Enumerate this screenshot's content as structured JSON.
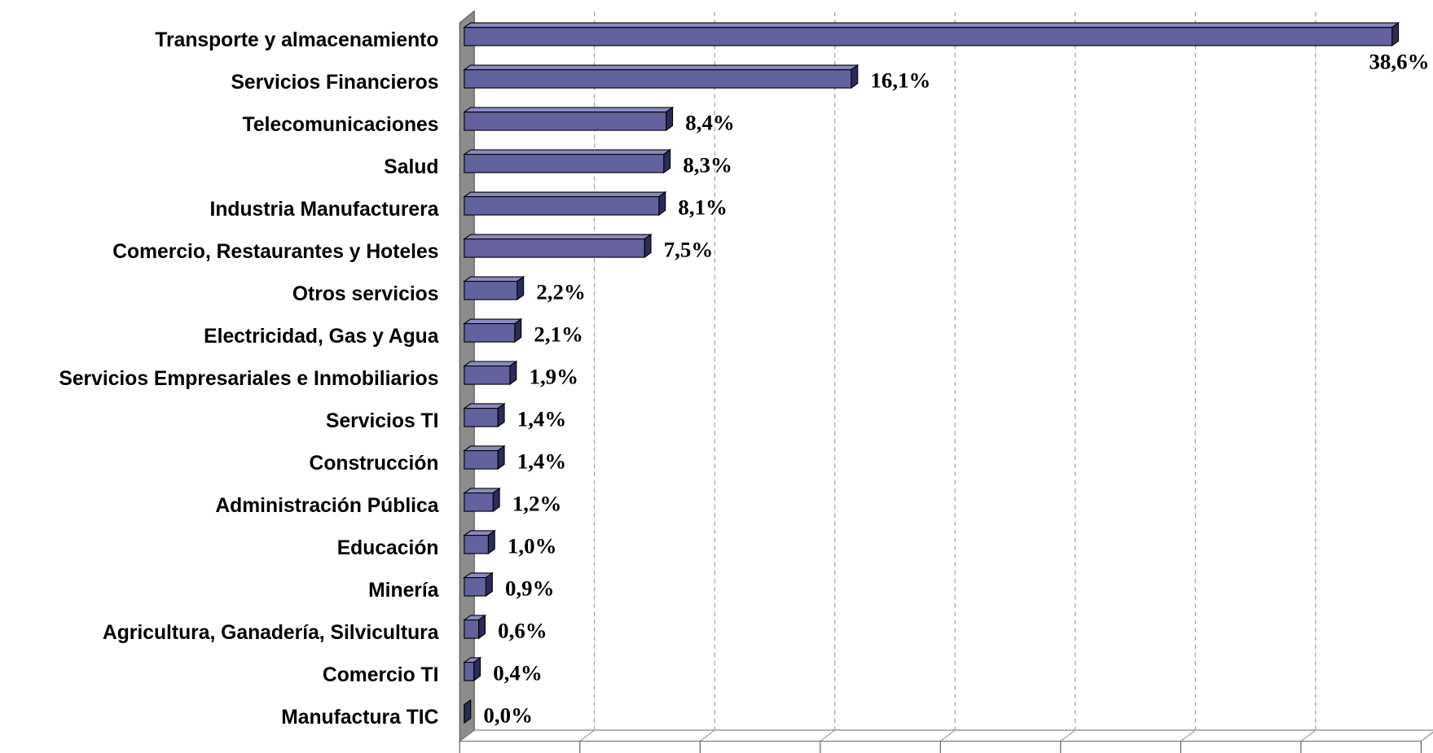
{
  "chart_data": {
    "type": "bar3d_horizontal",
    "categories": [
      "Transporte y almacenamiento",
      "Servicios Financieros",
      "Telecomunicaciones",
      "Salud",
      "Industria Manufacturera",
      "Comercio, Restaurantes y Hoteles",
      "Otros servicios",
      "Electricidad, Gas y Agua",
      "Servicios Empresariales e Inmobiliarios",
      "Servicios TI",
      "Construcción",
      "Administración Pública",
      "Educación",
      "Minería",
      "Agricultura, Ganadería, Silvicultura",
      "Comercio TI",
      "Manufactura TIC"
    ],
    "values": [
      38.6,
      16.1,
      8.4,
      8.3,
      8.1,
      7.5,
      2.2,
      2.1,
      1.9,
      1.4,
      1.4,
      1.2,
      1.0,
      0.9,
      0.6,
      0.4,
      0.0
    ],
    "value_labels": [
      "38,6%",
      "16,1%",
      "8,4%",
      "8,3%",
      "8,1%",
      "7,5%",
      "2,2%",
      "2,1%",
      "1,9%",
      "1,4%",
      "1,4%",
      "1,2%",
      "1,0%",
      "0,9%",
      "0,6%",
      "0,4%",
      "0,0%"
    ],
    "color": "#62629e",
    "xlim": [
      0,
      40
    ],
    "xticks": [
      0,
      5,
      10,
      15,
      20,
      25,
      30,
      35,
      40
    ],
    "grid": true
  }
}
